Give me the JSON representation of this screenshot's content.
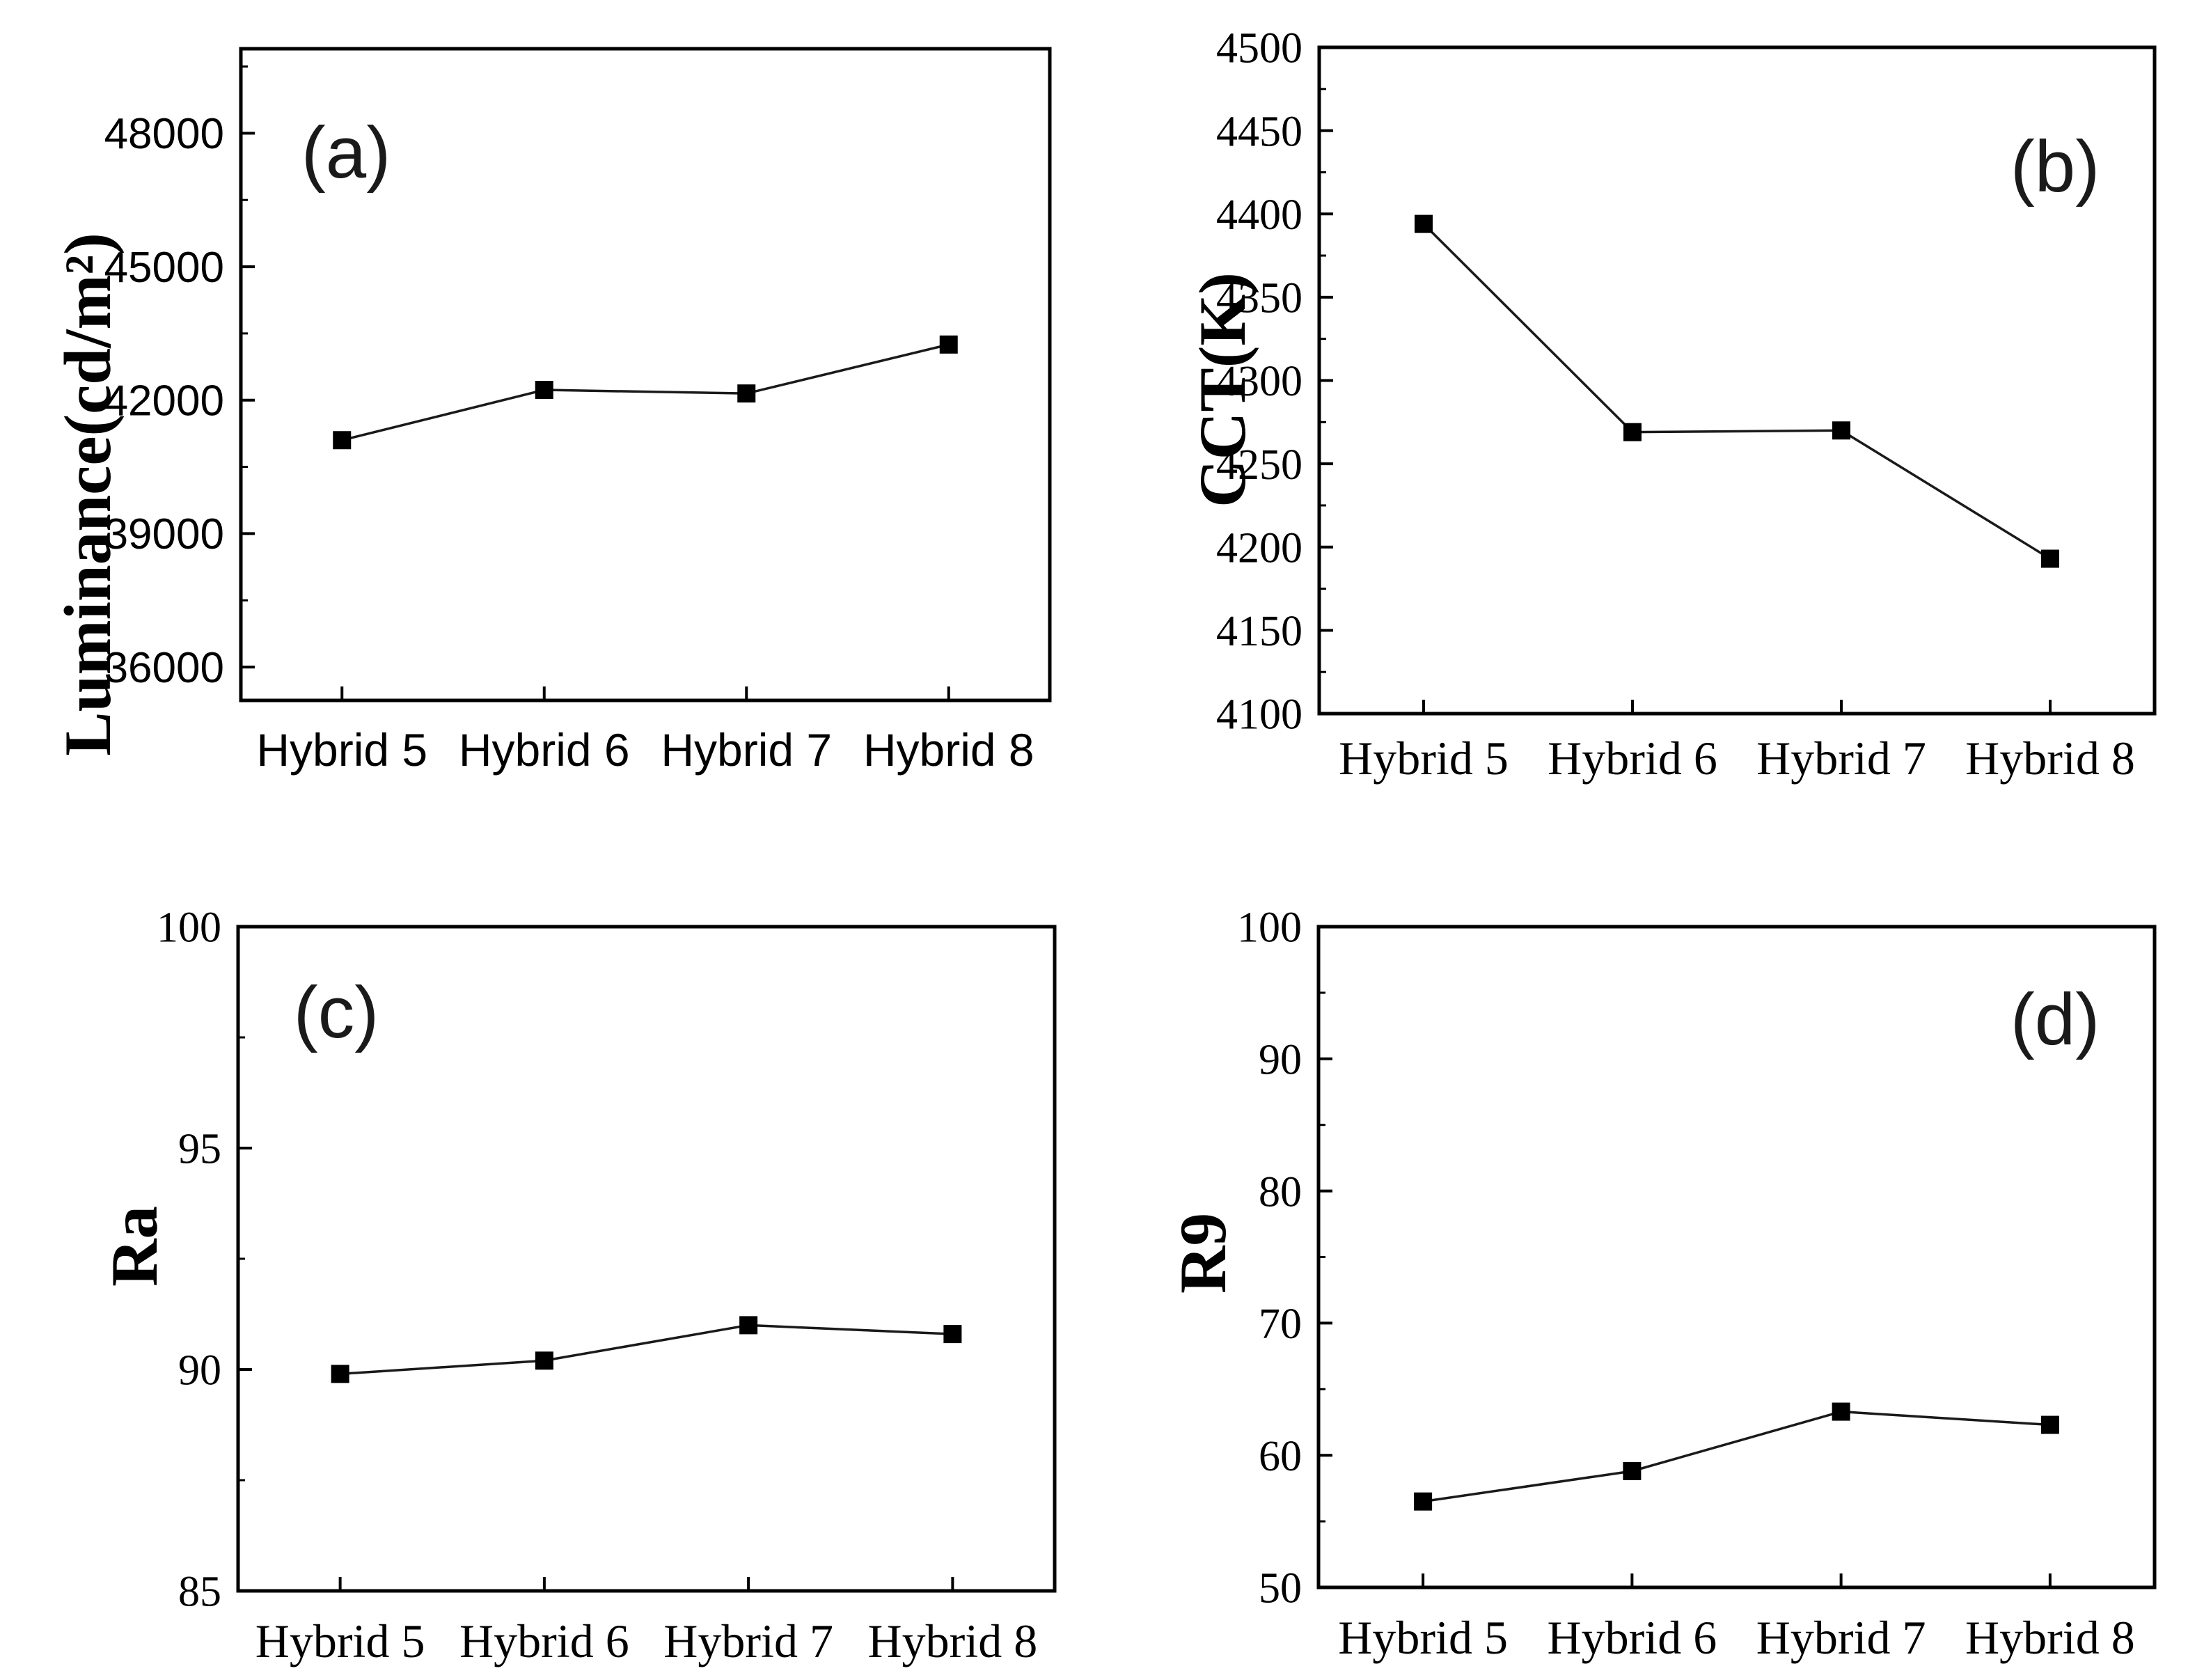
{
  "figure": {
    "background_color": "#ffffff",
    "foreground_color": "#000000",
    "line_color": "#1a1a1a",
    "marker": "filled-square",
    "categories": [
      "Hybrid 5",
      "Hybrid 6",
      "Hybrid 7",
      "Hybrid 8"
    ]
  },
  "chart_data": [
    {
      "type": "line",
      "panel": "a",
      "panel_label": "(a)",
      "ylabel": "Luminance(cd/m²)",
      "xlabel": "",
      "categories": [
        "Hybrid 5",
        "Hybrid 6",
        "Hybrid 7",
        "Hybrid 8"
      ],
      "values": [
        41100,
        42230,
        42150,
        43250
      ],
      "ylim": [
        35250,
        49900
      ],
      "yticks": [
        36000,
        39000,
        42000,
        45000,
        48000
      ],
      "ytick_labels": [
        "36000",
        "39000",
        "42000",
        "45000",
        "48000"
      ],
      "yminor_ticks": [
        37500,
        40500,
        43500,
        46500,
        49500
      ],
      "legend": "none",
      "grid": false,
      "tick_font": "sans",
      "label_corner": "top-left"
    },
    {
      "type": "line",
      "panel": "b",
      "panel_label": "(b)",
      "ylabel": "CCT(K)",
      "xlabel": "",
      "categories": [
        "Hybrid 5",
        "Hybrid 6",
        "Hybrid 7",
        "Hybrid 8"
      ],
      "values": [
        4394,
        4269,
        4270,
        4193
      ],
      "ylim": [
        4100,
        4500
      ],
      "yticks": [
        4100,
        4150,
        4200,
        4250,
        4300,
        4350,
        4400,
        4450,
        4500
      ],
      "ytick_labels": [
        "4100",
        "4150",
        "4200",
        "4250",
        "4300",
        "4350",
        "4400",
        "4450",
        "4500"
      ],
      "yminor_ticks": [
        4125,
        4175,
        4225,
        4275,
        4325,
        4375,
        4425,
        4475
      ],
      "legend": "none",
      "grid": false,
      "tick_font": "serif",
      "label_corner": "top-right"
    },
    {
      "type": "line",
      "panel": "c",
      "panel_label": "(c)",
      "ylabel": "Ra",
      "xlabel": "",
      "categories": [
        "Hybrid 5",
        "Hybrid 6",
        "Hybrid 7",
        "Hybrid 8"
      ],
      "values": [
        89.9,
        90.2,
        91.0,
        90.8
      ],
      "ylim": [
        85,
        100
      ],
      "yticks": [
        85,
        90,
        95,
        100
      ],
      "ytick_labels": [
        "85",
        "90",
        "95",
        "100"
      ],
      "yminor_ticks": [
        87.5,
        92.5,
        97.5
      ],
      "legend": "none",
      "grid": false,
      "tick_font": "serif",
      "label_corner": "top-left"
    },
    {
      "type": "line",
      "panel": "d",
      "panel_label": "(d)",
      "ylabel": "R9",
      "xlabel": "",
      "categories": [
        "Hybrid 5",
        "Hybrid 6",
        "Hybrid 7",
        "Hybrid 8"
      ],
      "values": [
        56.5,
        58.8,
        63.3,
        62.3
      ],
      "ylim": [
        50,
        100
      ],
      "yticks": [
        50,
        60,
        70,
        80,
        90,
        100
      ],
      "ytick_labels": [
        "50",
        "60",
        "70",
        "80",
        "90",
        "100"
      ],
      "yminor_ticks": [
        55,
        65,
        75,
        85,
        95
      ],
      "legend": "none",
      "grid": false,
      "tick_font": "serif",
      "label_corner": "top-right"
    }
  ]
}
